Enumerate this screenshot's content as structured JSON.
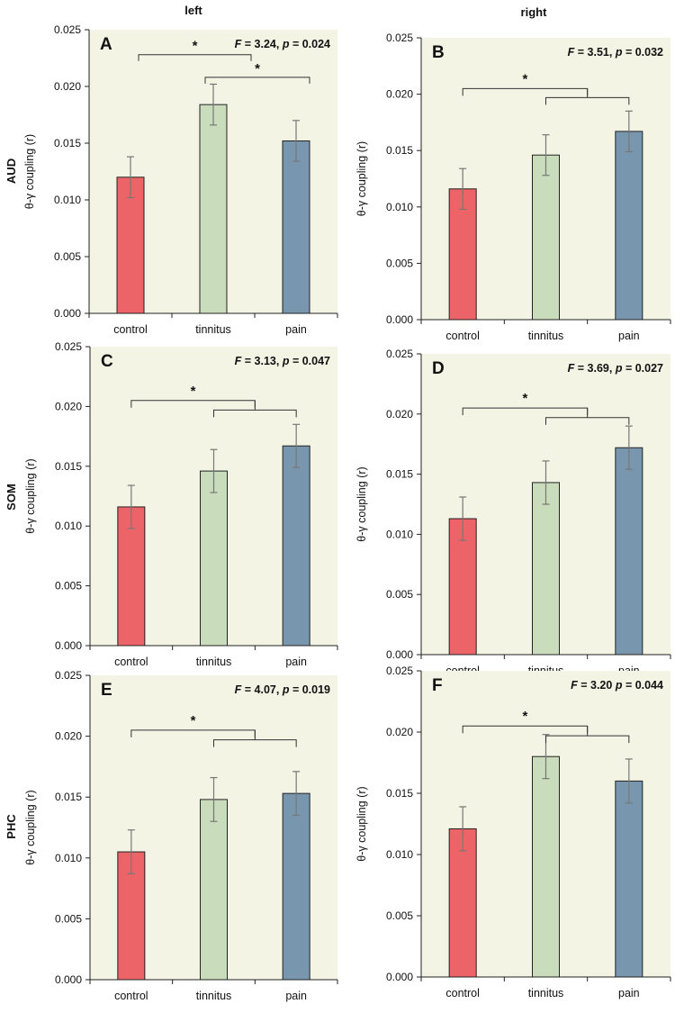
{
  "column_titles": [
    "left",
    "right"
  ],
  "row_labels": [
    "AUD",
    "SOM",
    "PHC"
  ],
  "colors": {
    "control": "#ec6467",
    "tinnitus": "#c9dcbb",
    "pain": "#7896ae",
    "plot_bg": "#f3f4e4",
    "error": "#777777"
  },
  "chart_data": [
    {
      "panel": "A",
      "type": "bar",
      "stats_F": "3.24",
      "stats_p": "0.024",
      "ylabel": "θ-γ coupling (r)",
      "ylim": [
        0,
        0.025
      ],
      "yticks": [
        "0.000",
        "0.005",
        "0.010",
        "0.015",
        "0.020",
        "0.025"
      ],
      "categories": [
        "control",
        "tinnitus",
        "pain"
      ],
      "values": [
        0.012,
        0.0184,
        0.0152
      ],
      "errors": [
        0.0018,
        0.0018,
        0.0018
      ],
      "brackets": "pairwise"
    },
    {
      "panel": "B",
      "type": "bar",
      "stats_F": "3.51",
      "stats_p": "0.032",
      "ylabel": "θ-γ coupling (r)",
      "ylim": [
        0,
        0.025
      ],
      "yticks": [
        "0.000",
        "0.005",
        "0.010",
        "0.015",
        "0.020",
        "0.025"
      ],
      "categories": [
        "control",
        "tinnitus",
        "pain"
      ],
      "values": [
        0.0116,
        0.0146,
        0.0167
      ],
      "errors": [
        0.0018,
        0.0018,
        0.0018
      ],
      "brackets": "nested"
    },
    {
      "panel": "C",
      "type": "bar",
      "stats_F": "3.13",
      "stats_p": "0.047",
      "ylabel": "θ-γ coupling (r)",
      "ylim": [
        0,
        0.025
      ],
      "yticks": [
        "0.000",
        "0.005",
        "0.010",
        "0.015",
        "0.020",
        "0.025"
      ],
      "categories": [
        "control",
        "tinnitus",
        "pain"
      ],
      "values": [
        0.0116,
        0.0146,
        0.0167
      ],
      "errors": [
        0.0018,
        0.0018,
        0.0018
      ],
      "brackets": "nested"
    },
    {
      "panel": "D",
      "type": "bar",
      "stats_F": "3.69",
      "stats_p": "0.027",
      "ylabel": "θ-γ coupling (r)",
      "ylim": [
        0,
        0.025
      ],
      "yticks": [
        "0.000",
        "0.005",
        "0.010",
        "0.015",
        "0.020",
        "0.025"
      ],
      "categories": [
        "control",
        "tinnitus",
        "pain"
      ],
      "values": [
        0.0113,
        0.0143,
        0.0172
      ],
      "errors": [
        0.0018,
        0.0018,
        0.0018
      ],
      "brackets": "nested"
    },
    {
      "panel": "E",
      "type": "bar",
      "stats_F": "4.07",
      "stats_p": "0.019",
      "ylabel": "θ-γ coupling (r)",
      "ylim": [
        0,
        0.025
      ],
      "yticks": [
        "0.000",
        "0.005",
        "0.010",
        "0.015",
        "0.020",
        "0.025"
      ],
      "categories": [
        "control",
        "tinnitus",
        "pain"
      ],
      "values": [
        0.0105,
        0.0148,
        0.0153
      ],
      "errors": [
        0.0018,
        0.0018,
        0.0018
      ],
      "brackets": "nested"
    },
    {
      "panel": "F",
      "type": "bar",
      "stats_F": "3.20",
      "stats_p": "0.044",
      "stats_sep": "",
      "ylabel": "θ-γ coupling (r)",
      "ylim": [
        0,
        0.025
      ],
      "yticks": [
        "0.000",
        "0.005",
        "0.010",
        "0.015",
        "0.020",
        "0.025"
      ],
      "categories": [
        "control",
        "tinnitus",
        "pain"
      ],
      "values": [
        0.0121,
        0.018,
        0.016
      ],
      "errors": [
        0.0018,
        0.0018,
        0.0018
      ],
      "brackets": "nested"
    }
  ],
  "star": "*"
}
